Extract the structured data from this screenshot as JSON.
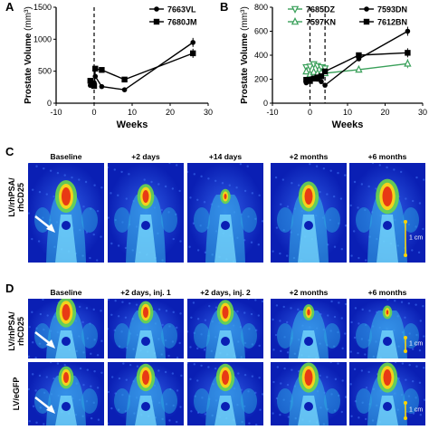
{
  "panels": {
    "A": "A",
    "B": "B",
    "C": "C",
    "D": "D"
  },
  "chart_data": [
    {
      "id": "A",
      "type": "line",
      "xlabel": "Weeks",
      "ylabel": "Prostate Volume (mm³)",
      "xlim": [
        -10,
        30
      ],
      "ylim": [
        0,
        1500
      ],
      "xticks": [
        -10,
        0,
        10,
        20,
        30
      ],
      "yticks": [
        0,
        500,
        1000,
        1500
      ],
      "baseline_line_x": 0,
      "series": [
        {
          "name": "7663VL",
          "marker": "circle",
          "x": [
            -1,
            0,
            0.3,
            2,
            8,
            26
          ],
          "y": [
            280,
            320,
            420,
            260,
            210,
            950
          ]
        },
        {
          "name": "7680JM",
          "marker": "square",
          "x": [
            -1,
            0,
            0.3,
            2,
            8,
            26
          ],
          "y": [
            350,
            270,
            540,
            520,
            370,
            780
          ]
        }
      ]
    },
    {
      "id": "B",
      "type": "line",
      "xlabel": "Weeks",
      "ylabel": "Prostate Volume (mm³)",
      "xlim": [
        -10,
        30
      ],
      "ylim": [
        0,
        800
      ],
      "xticks": [
        -10,
        0,
        10,
        20,
        30
      ],
      "yticks": [
        0,
        200,
        400,
        600,
        800
      ],
      "baseline_line_x": [
        0,
        4
      ],
      "series": [
        {
          "name": "7685DZ",
          "marker": "triangle-down",
          "color": "#3aa05a",
          "x": [
            -1,
            0,
            1,
            2,
            3,
            4
          ],
          "y": [
            300,
            305,
            325,
            310,
            300,
            290
          ]
        },
        {
          "name": "7597KN",
          "marker": "triangle-up",
          "color": "#3aa05a",
          "x": [
            -1,
            0,
            1,
            2,
            3,
            4,
            13,
            26
          ],
          "y": [
            265,
            240,
            260,
            250,
            255,
            250,
            280,
            330
          ]
        },
        {
          "name": "7593DN",
          "marker": "circle",
          "color": "#000000",
          "x": [
            -1,
            0,
            1,
            2,
            3,
            4,
            13,
            26
          ],
          "y": [
            170,
            200,
            210,
            200,
            180,
            150,
            370,
            600
          ]
        },
        {
          "name": "7612BN",
          "marker": "square",
          "color": "#000000",
          "x": [
            -1,
            0,
            1,
            2,
            3,
            4,
            13,
            26
          ],
          "y": [
            195,
            185,
            205,
            215,
            225,
            265,
            400,
            420
          ]
        }
      ]
    }
  ],
  "sectionC": {
    "row_label": "LV/rhPSA/\nrhCD25",
    "headers": [
      "Baseline",
      "+2 days",
      "+14 days",
      "+2 months",
      "+6 months"
    ],
    "scale": "1 cm"
  },
  "sectionD": {
    "row1_label": "LV/rhPSA/\nrhCD25",
    "row2_label": "LV/eGFP",
    "headers": [
      "Baseline",
      "+2 days, inj. 1",
      "+2 days, inj. 2",
      "+2 months",
      "+6 months"
    ],
    "scale1": "1 cm",
    "scale2": "1 cm"
  }
}
